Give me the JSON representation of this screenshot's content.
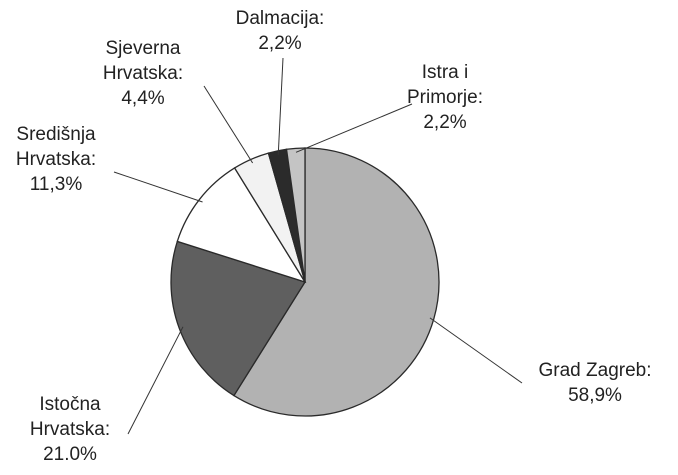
{
  "chart_data": {
    "type": "pie",
    "categories": [
      "Grad Zagreb:",
      "Istočna Hrvatska:",
      "Središnja Hrvatska:",
      "Sjeverna Hrvatska:",
      "Dalmacija:",
      "Istra i Primorje:"
    ],
    "values": [
      58.9,
      21.0,
      11.3,
      4.4,
      2.2,
      2.2
    ],
    "value_labels": [
      "58,9%",
      "21.0%",
      "11,3%",
      "4,4%",
      "2,2%",
      "2,2%"
    ],
    "colors": [
      "#b2b2b2",
      "#5f5f5f",
      "#ffffff",
      "#f2f2f2",
      "#2b2b2b",
      "#c4c4c4"
    ]
  }
}
